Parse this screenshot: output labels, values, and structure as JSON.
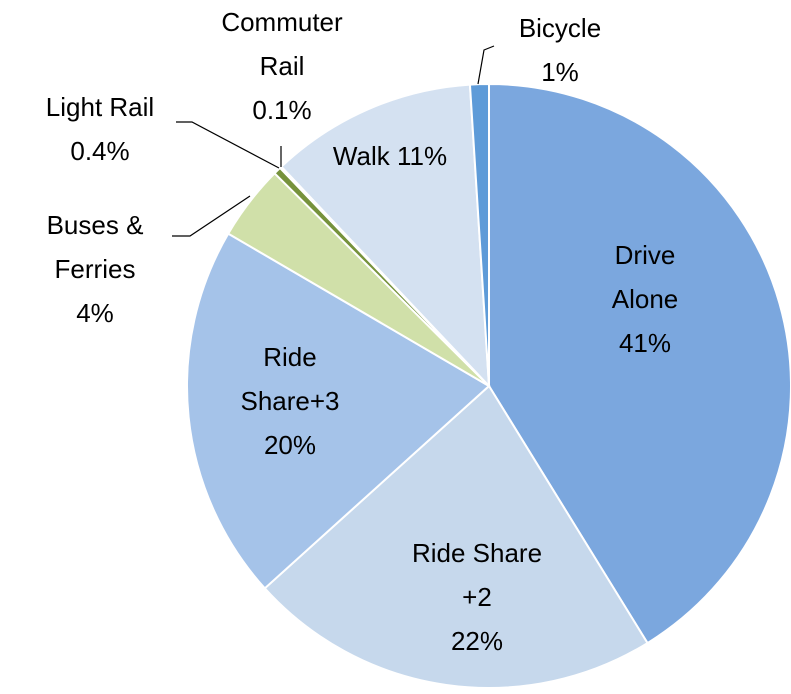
{
  "chart_data": {
    "type": "pie",
    "categories": [
      "Drive Alone",
      "Ride Share +2",
      "Ride Share+3",
      "Buses & Ferries",
      "Light Rail",
      "Commuter Rail",
      "Walk",
      "Bicycle"
    ],
    "values": [
      41,
      22,
      20,
      4,
      0.4,
      0.1,
      11,
      1
    ],
    "value_labels": [
      "41%",
      "22%",
      "20%",
      "4%",
      "0.4%",
      "0.1%",
      "11%",
      "1%"
    ],
    "colors": [
      "#7ba7de",
      "#c6d8ec",
      "#a5c3e9",
      "#d0e0a9",
      "#76923c",
      "#4f6228",
      "#d4e1f1",
      "#5e9bd8"
    ]
  }
}
